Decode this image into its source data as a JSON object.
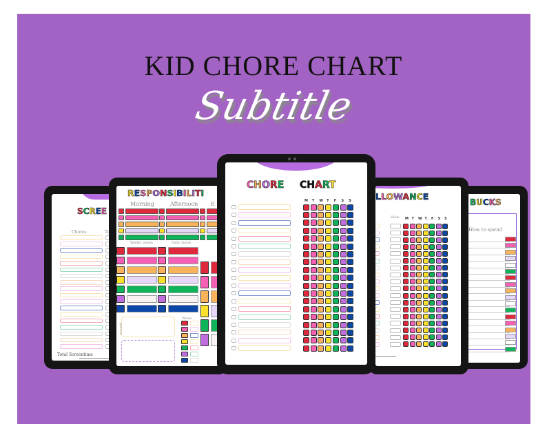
{
  "hero": {
    "title": "KID CHORE CHART",
    "subtitle": "Subtitle"
  },
  "colors": {
    "background": "#a363c4",
    "red": "#e0283c",
    "pink": "#f55fb4",
    "orange": "#f9b35a",
    "yellow": "#f9e02d",
    "green": "#0db45a",
    "purple": "#c06de0",
    "blue": "#0a47a8",
    "lavender": "#e6d6fa"
  },
  "tablets": {
    "screentime": {
      "title": "SCREE",
      "col_chores": "Chores",
      "col_time": "Ti",
      "total": "Total Screentime"
    },
    "responsibilities": {
      "title": "RESPONSIBILITI",
      "morning": "Morning",
      "afternoon": "Afternoon",
      "evening": "E",
      "weekly": "Weekly chores",
      "daily": "Daily chores",
      "rewards": "Rewards",
      "prizes": "Prizes"
    },
    "chore_chart": {
      "title_1": "CHORE",
      "title_2": "CHART",
      "days": [
        "M",
        "T",
        "W",
        "T",
        "F",
        "S",
        "S"
      ]
    },
    "allowance": {
      "title": "LLOWANCE",
      "value": "Value",
      "days": [
        "M",
        "T",
        "W",
        "T",
        "F",
        "S",
        "S"
      ]
    },
    "bucks": {
      "title": "BUCKS",
      "how_to_spend": "How to spend"
    }
  }
}
